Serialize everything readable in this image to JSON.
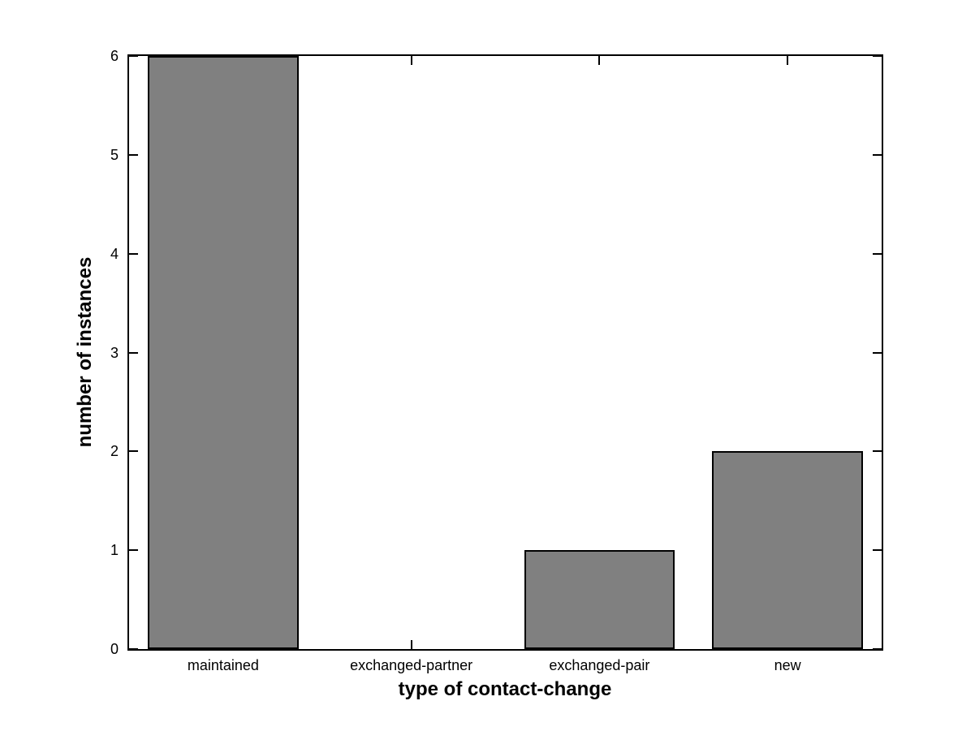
{
  "chart_data": {
    "type": "bar",
    "title": "",
    "xlabel": "type of contact-change",
    "ylabel": "number of instances",
    "categories": [
      "maintained",
      "exchanged-partner",
      "exchanged-pair",
      "new"
    ],
    "values": [
      6,
      0,
      1,
      2
    ],
    "ylim": [
      0,
      6
    ],
    "yticks": [
      0,
      1,
      2,
      3,
      4,
      5,
      6
    ],
    "bar_width_fraction": 0.8,
    "grid": false,
    "legend_position": "none",
    "colors": {
      "bar_fill": "#808080",
      "bar_edge": "#000000",
      "axis": "#000000",
      "background": "#ffffff",
      "text": "#000000"
    }
  }
}
